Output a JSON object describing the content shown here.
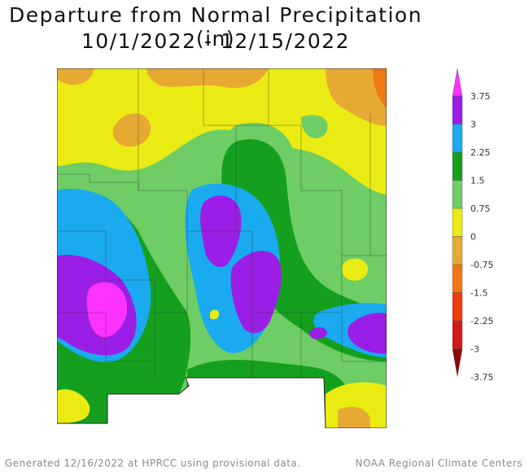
{
  "title": "Departure from Normal Precipitation (in)",
  "subtitle": "10/1/2022 - 12/15/2022",
  "legend": {
    "labels": [
      "3.75",
      "3",
      "2.25",
      "1.5",
      "0.75",
      "0",
      "-0.75",
      "-1.5",
      "-2.25",
      "-3",
      "-3.75"
    ],
    "colors": [
      "#ff33ff",
      "#9b1ee6",
      "#1aaaf0",
      "#14a01e",
      "#6ecd64",
      "#ebeb14",
      "#e6aa32",
      "#f07814",
      "#f03c0a",
      "#d21919",
      "#8c0a0a"
    ]
  },
  "footer": {
    "left": "Generated 12/16/2022 at HPRCC using provisional data.",
    "right": "NOAA Regional Climate Centers"
  }
}
